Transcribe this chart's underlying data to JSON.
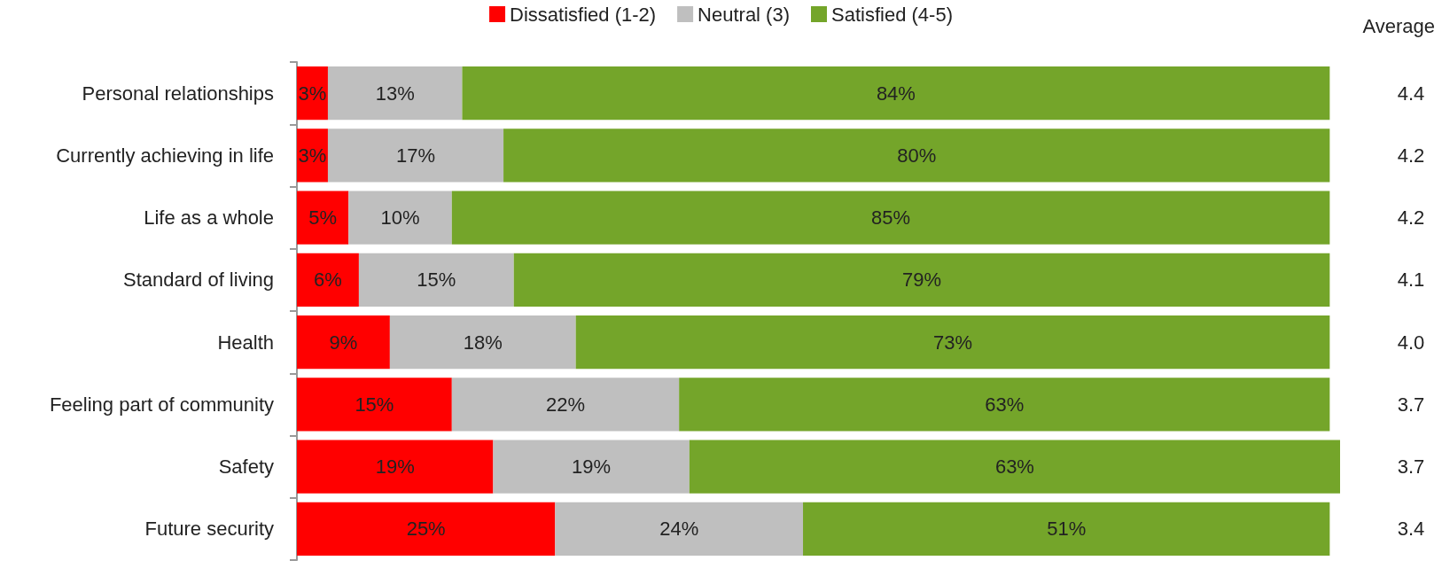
{
  "chart_data": {
    "type": "bar",
    "orientation": "horizontal",
    "stacked": true,
    "legend": "top",
    "categories": [
      "Personal relationships",
      "Currently achieving in life",
      "Life as a whole",
      "Standard of living",
      "Health",
      "Feeling part of community",
      "Safety",
      "Future security"
    ],
    "series": [
      {
        "name": "Dissatisfied (1-2)",
        "color": "#ff0000",
        "values": [
          3,
          3,
          5,
          6,
          9,
          15,
          19,
          25
        ],
        "value_labels": [
          "3%",
          "3%",
          "5%",
          "6%",
          "9%",
          "15%",
          "19%",
          "25%"
        ]
      },
      {
        "name": "Neutral (3)",
        "color": "#bfbfbf",
        "values": [
          13,
          17,
          10,
          15,
          18,
          22,
          19,
          24
        ],
        "value_labels": [
          "13%",
          "17%",
          "10%",
          "15%",
          "18%",
          "22%",
          "19%",
          "24%"
        ]
      },
      {
        "name": "Satisfied (4-5)",
        "color": "#74a52a",
        "values": [
          84,
          80,
          85,
          79,
          73,
          63,
          63,
          51
        ],
        "value_labels": [
          "84%",
          "80%",
          "85%",
          "79%",
          "73%",
          "63%",
          "63%",
          "51%"
        ]
      }
    ],
    "annotations": [
      "Average",
      "4.4",
      "4.2",
      "4.2",
      "4.1",
      "4.0",
      "3.7",
      "3.7",
      "3.4"
    ]
  }
}
